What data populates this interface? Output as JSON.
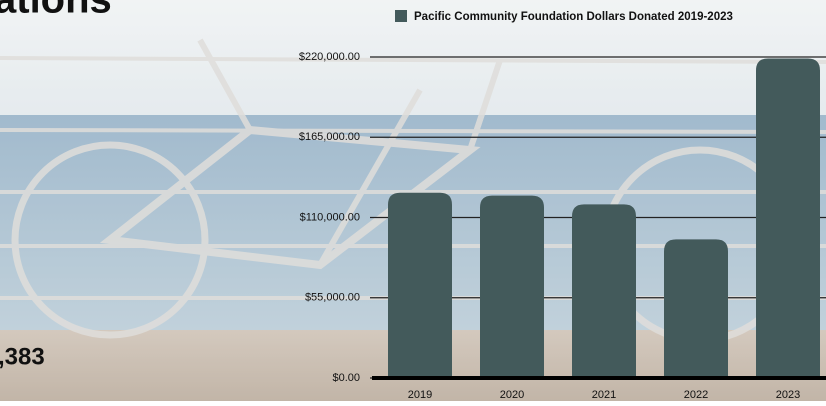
{
  "page": {
    "heading": "ations",
    "total": ",383"
  },
  "chart_data": {
    "type": "bar",
    "categories": [
      "2019",
      "2020",
      "2021",
      "2022",
      "2023"
    ],
    "series": [
      {
        "name": "Pacific Community Foundation Dollars Donated 2019-2023",
        "color": "#435a5b",
        "values": [
          127000,
          125000,
          119000,
          95000,
          219000
        ]
      }
    ],
    "ylim": [
      0,
      220000
    ],
    "yticks": [
      {
        "value": 0,
        "label": "$0.00"
      },
      {
        "value": 55000,
        "label": "$55,000.00"
      },
      {
        "value": 110000,
        "label": "$110,000.00"
      },
      {
        "value": 165000,
        "label": "$165,000.00"
      },
      {
        "value": 220000,
        "label": "$220,000.00"
      }
    ],
    "grid": true
  }
}
